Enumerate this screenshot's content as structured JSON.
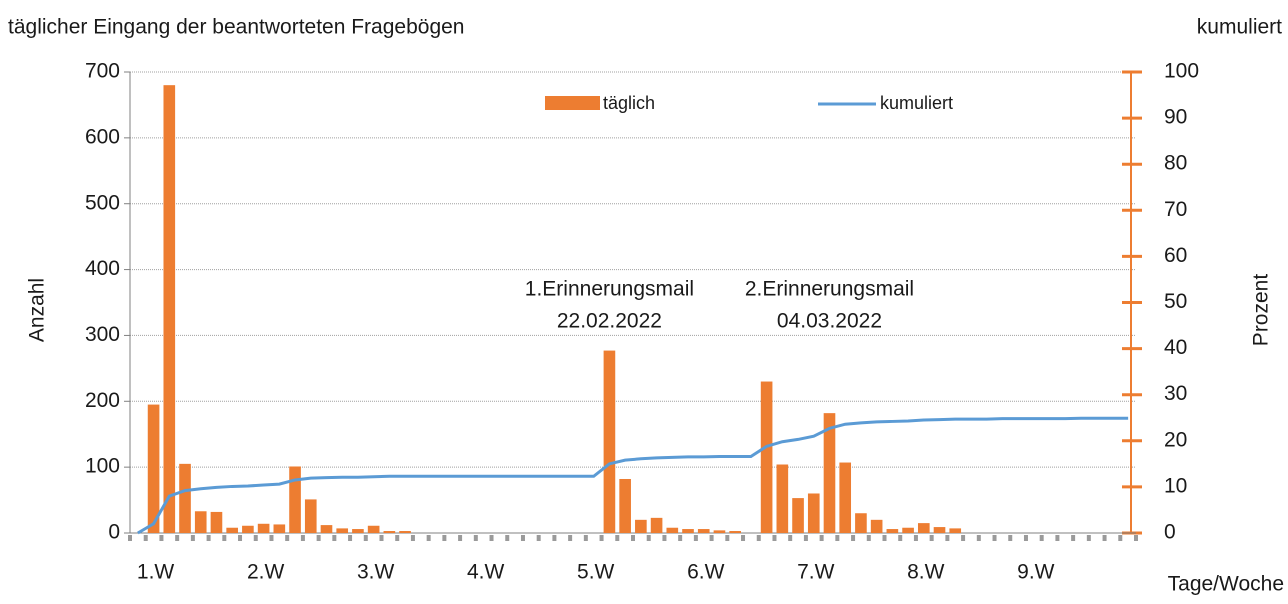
{
  "chart_data": {
    "type": "bar-line",
    "title": "täglicher Eingang der beantworteten Fragebögen",
    "y2_title": "kumuliert",
    "ylabel": "Anzahl",
    "y2label": "Prozent",
    "xlabel": "Tage/Woche",
    "categories": [
      null,
      "1.W",
      null,
      null,
      null,
      null,
      null,
      null,
      "2.W",
      null,
      null,
      null,
      null,
      null,
      null,
      "3.W",
      null,
      null,
      null,
      null,
      null,
      null,
      "4.W",
      null,
      null,
      null,
      null,
      null,
      null,
      "5.W",
      null,
      null,
      null,
      null,
      null,
      null,
      "6.W",
      null,
      null,
      null,
      null,
      null,
      null,
      "7.W",
      null,
      null,
      null,
      null,
      null,
      null,
      "8.W",
      null,
      null,
      null,
      null,
      null,
      null,
      "9.W",
      null,
      null,
      null,
      null,
      null,
      null
    ],
    "series": [
      {
        "name": "täglich",
        "color": "#ed7d31",
        "axis": "y",
        "values": [
          0,
          195,
          680,
          105,
          33,
          32,
          8,
          11,
          14,
          13,
          101,
          51,
          12,
          7,
          6,
          11,
          3,
          3,
          0,
          0,
          0,
          0,
          0,
          0,
          0,
          0,
          0,
          0,
          0,
          0,
          277,
          82,
          20,
          23,
          8,
          6,
          6,
          4,
          3,
          0,
          230,
          104,
          53,
          60,
          182,
          107,
          30,
          20,
          6,
          8,
          15,
          9,
          7,
          0,
          0,
          0,
          0,
          0,
          0,
          0,
          0,
          0,
          0,
          0
        ]
      },
      {
        "name": "kumuliert",
        "color": "#5b9bd5",
        "axis": "y2",
        "values": [
          0,
          2,
          8,
          9.2,
          9.6,
          9.9,
          10.1,
          10.2,
          10.4,
          10.6,
          11.5,
          11.9,
          12.0,
          12.1,
          12.1,
          12.2,
          12.3,
          12.3,
          12.3,
          12.3,
          12.3,
          12.3,
          12.3,
          12.3,
          12.3,
          12.3,
          12.3,
          12.3,
          12.3,
          12.3,
          15.0,
          15.8,
          16.1,
          16.3,
          16.4,
          16.5,
          16.5,
          16.6,
          16.6,
          16.6,
          18.8,
          19.8,
          20.3,
          21.0,
          22.7,
          23.6,
          23.9,
          24.1,
          24.2,
          24.3,
          24.5,
          24.6,
          24.7,
          24.7,
          24.7,
          24.8,
          24.8,
          24.8,
          24.8,
          24.8,
          24.9,
          24.9,
          24.9,
          24.9
        ]
      }
    ],
    "ylim": [
      0,
      700
    ],
    "yticks": [
      0,
      100,
      200,
      300,
      400,
      500,
      600,
      700
    ],
    "y2lim": [
      0,
      100
    ],
    "y2ticks": [
      0,
      10,
      20,
      30,
      40,
      50,
      60,
      70,
      80,
      90,
      100
    ],
    "grid": true,
    "annotations": [
      {
        "lines": [
          "1.Erinnerungsmail",
          "22.02.2022"
        ],
        "index": 30
      },
      {
        "lines": [
          "2.Erinnerungsmail",
          "04.03.2022"
        ],
        "index": 44
      }
    ]
  }
}
